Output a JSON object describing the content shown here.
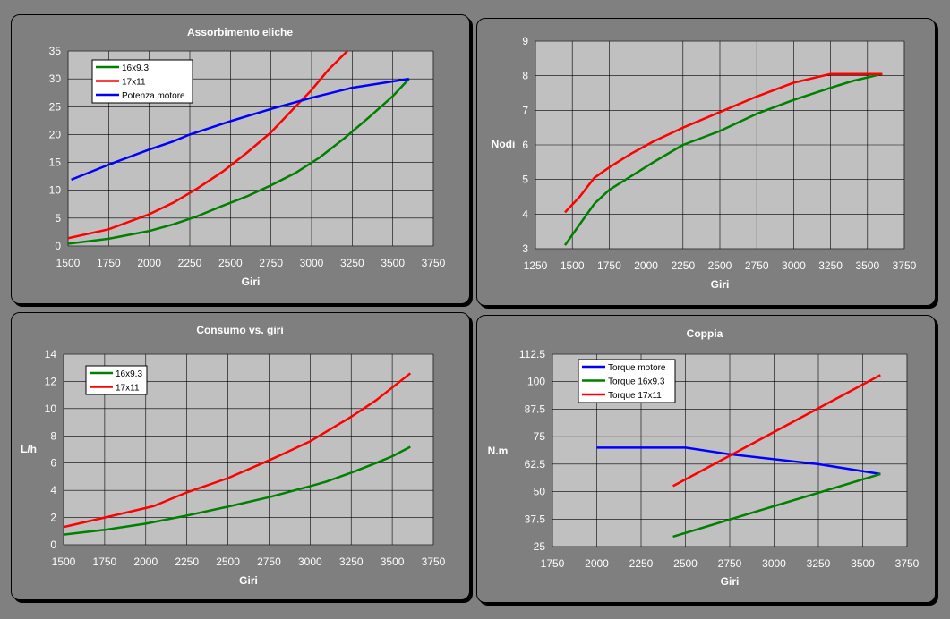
{
  "charts": [
    {
      "title": "Assorbimento eliche",
      "type": "line",
      "xlabel": "Giri",
      "ylabel": "",
      "xlim": [
        1500,
        3750
      ],
      "ylim": [
        0,
        35
      ],
      "xticks": [
        "1500",
        "1750",
        "2000",
        "2250",
        "2500",
        "2750",
        "3000",
        "3250",
        "3500",
        "3750"
      ],
      "yticks": [
        "0",
        "5",
        "10",
        "15",
        "20",
        "25",
        "30",
        "35"
      ],
      "legend_position": "top-left",
      "series": [
        {
          "name": "16x9.3",
          "color": "#008000",
          "x": [
            1500,
            1750,
            2000,
            2150,
            2300,
            2450,
            2600,
            2750,
            2900,
            3050,
            3200,
            3350,
            3500,
            3600
          ],
          "y": [
            0.4,
            1.3,
            2.7,
            3.9,
            5.4,
            7.2,
            8.9,
            10.9,
            13.1,
            15.9,
            19.3,
            23.0,
            26.9,
            30.0
          ]
        },
        {
          "name": "17x11",
          "color": "#ff0000",
          "x": [
            1500,
            1750,
            2000,
            2150,
            2300,
            2450,
            2600,
            2750,
            2900,
            3000,
            3100,
            3220
          ],
          "y": [
            1.4,
            3.0,
            5.7,
            7.8,
            10.4,
            13.3,
            16.7,
            20.4,
            25.0,
            28.0,
            31.5,
            35.0
          ]
        },
        {
          "name": "Potenza motore",
          "color": "#0000ff",
          "x": [
            1520,
            1750,
            2000,
            2150,
            2250,
            2500,
            2750,
            3000,
            3250,
            3600
          ],
          "y": [
            11.9,
            14.6,
            17.3,
            18.8,
            20.0,
            22.4,
            24.6,
            26.6,
            28.4,
            30.0
          ]
        }
      ]
    },
    {
      "title": "",
      "type": "line",
      "xlabel": "Giri",
      "ylabel": "Nodi",
      "xlim": [
        1250,
        3750
      ],
      "ylim": [
        3,
        9
      ],
      "xticks": [
        "1250",
        "1500",
        "1750",
        "2000",
        "2250",
        "2500",
        "2750",
        "3000",
        "3250",
        "3500",
        "3750"
      ],
      "yticks": [
        "3",
        "4",
        "5",
        "6",
        "7",
        "8",
        "9"
      ],
      "legend_position": "none",
      "series": [
        {
          "name": "",
          "color": "#008000",
          "x": [
            1450,
            1550,
            1650,
            1750,
            1900,
            2050,
            2250,
            2500,
            2750,
            3000,
            3250,
            3400,
            3600
          ],
          "y": [
            3.1,
            3.7,
            4.3,
            4.7,
            5.1,
            5.5,
            6.0,
            6.4,
            6.9,
            7.3,
            7.65,
            7.85,
            8.05
          ]
        },
        {
          "name": "",
          "color": "#ff0000",
          "x": [
            1450,
            1550,
            1650,
            1750,
            1900,
            2050,
            2250,
            2500,
            2750,
            3000,
            3250,
            3400,
            3600
          ],
          "y": [
            4.05,
            4.5,
            5.05,
            5.35,
            5.75,
            6.1,
            6.5,
            6.95,
            7.4,
            7.8,
            8.05,
            8.05,
            8.05
          ]
        }
      ]
    },
    {
      "title": "Consumo vs. giri",
      "type": "line",
      "xlabel": "Giri",
      "ylabel": "L/h",
      "xlim": [
        1500,
        3750
      ],
      "ylim": [
        0,
        14
      ],
      "xticks": [
        "1500",
        "1750",
        "2000",
        "2250",
        "2500",
        "2750",
        "3000",
        "3250",
        "3500",
        "3750"
      ],
      "yticks": [
        "0",
        "2",
        "4",
        "6",
        "8",
        "10",
        "12",
        "14"
      ],
      "legend_position": "top-left",
      "series": [
        {
          "name": "16x9.3",
          "color": "#008000",
          "x": [
            1500,
            1750,
            2000,
            2250,
            2500,
            2750,
            3000,
            3100,
            3250,
            3400,
            3500,
            3610
          ],
          "y": [
            0.75,
            1.1,
            1.55,
            2.15,
            2.8,
            3.5,
            4.3,
            4.65,
            5.3,
            6.0,
            6.5,
            7.2
          ]
        },
        {
          "name": "17x11",
          "color": "#ff0000",
          "x": [
            1500,
            1750,
            2000,
            2050,
            2250,
            2500,
            2750,
            2850,
            3000,
            3250,
            3400,
            3610
          ],
          "y": [
            1.3,
            2.0,
            2.7,
            2.85,
            3.85,
            4.9,
            6.2,
            6.75,
            7.6,
            9.4,
            10.6,
            12.6
          ]
        }
      ]
    },
    {
      "title": "Coppia",
      "type": "line",
      "xlabel": "Giri",
      "ylabel": "N.m",
      "xlim": [
        1750,
        3750
      ],
      "ylim": [
        25,
        112.5
      ],
      "xticks": [
        "1750",
        "2000",
        "2250",
        "2500",
        "2750",
        "3000",
        "3250",
        "3500",
        "3750"
      ],
      "yticks": [
        "25",
        "37.5",
        "50",
        "62.5",
        "75",
        "87.5",
        "100",
        "112.5"
      ],
      "legend_position": "top-left",
      "series": [
        {
          "name": "Torque motore",
          "color": "#0000ff",
          "x": [
            2000,
            2500,
            2750,
            3250,
            3600
          ],
          "y": [
            70,
            70,
            67,
            62.5,
            58
          ]
        },
        {
          "name": "Torque 16x9.3",
          "color": "#008000",
          "x": [
            2430,
            3600
          ],
          "y": [
            29.5,
            58
          ]
        },
        {
          "name": "Torque 17x11",
          "color": "#ff0000",
          "x": [
            2430,
            3600
          ],
          "y": [
            52.5,
            103
          ]
        }
      ]
    }
  ]
}
